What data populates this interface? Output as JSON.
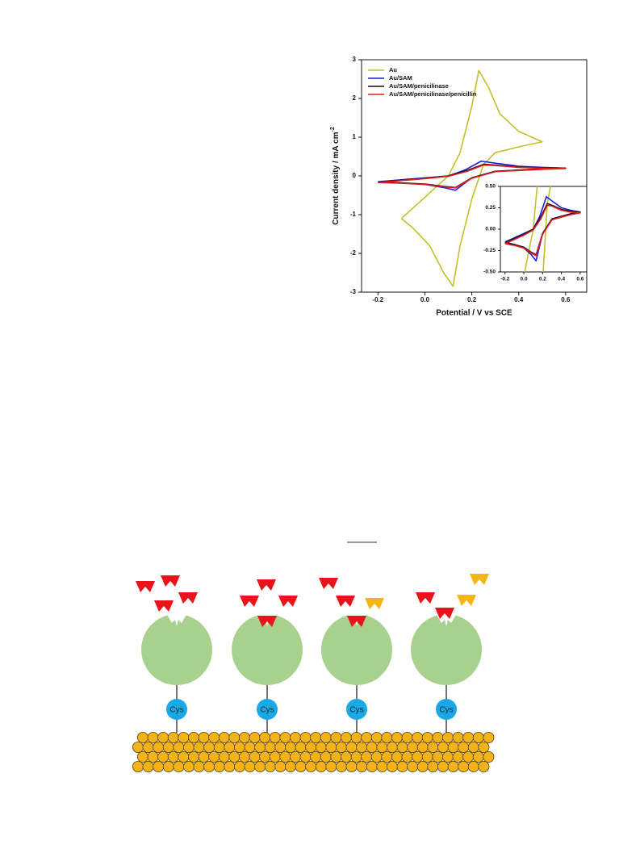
{
  "chart_data": [
    {
      "type": "line",
      "xlabel": "Potential / V vs SCE",
      "ylabel": "Current density / mA cm",
      "ylabel_sup": "-2",
      "xlim": [
        -0.27,
        0.69
      ],
      "ylim": [
        -3,
        3
      ],
      "xticks": [
        -0.2,
        {
          "value": 0,
          "label": "0.0"
        },
        0.2,
        0.4,
        0.6
      ],
      "yticks": [
        -3,
        -2,
        -1,
        0,
        1,
        2,
        3
      ],
      "legend": "upper left",
      "series": [
        {
          "name": "Au",
          "color": "#c4c02c",
          "x": [
            -0.1,
            0.0,
            0.1,
            0.15,
            0.2,
            0.23,
            0.27,
            0.32,
            0.4,
            0.5,
            0.4,
            0.3,
            0.25,
            0.2,
            0.15,
            0.12,
            0.08,
            0.02,
            -0.05,
            -0.1
          ],
          "values": [
            -1.1,
            -0.55,
            0.0,
            0.6,
            1.8,
            2.72,
            2.3,
            1.6,
            1.15,
            0.88,
            0.75,
            0.6,
            0.3,
            -0.6,
            -1.8,
            -2.85,
            -2.5,
            -1.8,
            -1.35,
            -1.1
          ]
        },
        {
          "name": "Au/SAM",
          "color": "#1c1ce0",
          "x": [
            -0.2,
            -0.1,
            0.0,
            0.1,
            0.17,
            0.24,
            0.3,
            0.4,
            0.5,
            0.6,
            0.5,
            0.4,
            0.3,
            0.2,
            0.13,
            0.08,
            0.0,
            -0.1,
            -0.2
          ],
          "values": [
            -0.15,
            -0.1,
            -0.05,
            0.0,
            0.15,
            0.38,
            0.33,
            0.25,
            0.22,
            0.2,
            0.18,
            0.15,
            0.12,
            -0.05,
            -0.37,
            -0.3,
            -0.22,
            -0.18,
            -0.15
          ]
        },
        {
          "name": "Au/SAM/penicilinase",
          "color": "#111111",
          "x": [
            -0.2,
            -0.1,
            0.0,
            0.1,
            0.18,
            0.25,
            0.3,
            0.4,
            0.5,
            0.6,
            0.5,
            0.4,
            0.3,
            0.2,
            0.13,
            0.08,
            0.0,
            -0.1,
            -0.2
          ],
          "values": [
            -0.16,
            -0.11,
            -0.06,
            0.0,
            0.14,
            0.3,
            0.28,
            0.23,
            0.21,
            0.2,
            0.18,
            0.15,
            0.12,
            -0.05,
            -0.3,
            -0.27,
            -0.21,
            -0.18,
            -0.16
          ]
        },
        {
          "name": "Au/SAM/penicilinase/penicillin",
          "color": "#e01c1c",
          "x": [
            -0.2,
            -0.1,
            0.0,
            0.1,
            0.18,
            0.25,
            0.3,
            0.4,
            0.5,
            0.6,
            0.5,
            0.4,
            0.3,
            0.2,
            0.13,
            0.08,
            0.0,
            -0.1,
            -0.2
          ],
          "values": [
            -0.17,
            -0.12,
            -0.07,
            -0.01,
            0.12,
            0.28,
            0.27,
            0.22,
            0.2,
            0.19,
            0.17,
            0.14,
            0.11,
            -0.06,
            -0.31,
            -0.28,
            -0.22,
            -0.19,
            -0.17
          ]
        }
      ]
    },
    {
      "type": "line",
      "xlim": [
        -0.25,
        0.67
      ],
      "ylim": [
        -0.5,
        0.5
      ],
      "xticks": [
        -0.2,
        {
          "value": 0,
          "label": "0.0"
        },
        0.2,
        0.4,
        0.6
      ],
      "yticks": [
        {
          "value": -0.5,
          "label": "-0.50"
        },
        {
          "value": -0.25,
          "label": "-0.25"
        },
        {
          "value": 0,
          "label": "0.00"
        },
        {
          "value": 0.25,
          "label": "0.25"
        },
        {
          "value": 0.5,
          "label": "0.50"
        }
      ]
    }
  ],
  "diagram": {
    "labels": [
      "Cys",
      "Cys",
      "Cys",
      "Cys"
    ]
  }
}
